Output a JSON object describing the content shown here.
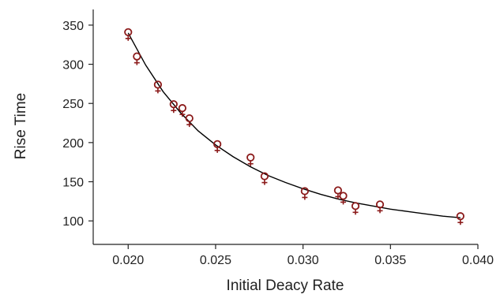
{
  "chart_data": {
    "type": "scatter",
    "title": "",
    "xlabel": "Initial Deacy Rate",
    "ylabel": "Rise Time",
    "xlim": [
      0.018,
      0.04
    ],
    "ylim": [
      70,
      370
    ],
    "x_ticks": [
      0.02,
      0.025,
      0.03,
      0.035,
      0.04
    ],
    "x_tick_labels": [
      "0.020",
      "0.025",
      "0.030",
      "0.035",
      "0.040"
    ],
    "y_ticks": [
      100,
      150,
      200,
      250,
      300,
      350
    ],
    "y_tick_labels": [
      "100",
      "150",
      "200",
      "250",
      "300",
      "350"
    ],
    "grid": false,
    "legend": "none",
    "series": [
      {
        "marker": "female-symbol",
        "color": "#8b1a1a",
        "points": [
          {
            "x": 0.02,
            "y": 341
          },
          {
            "x": 0.0205,
            "y": 310
          },
          {
            "x": 0.0217,
            "y": 274
          },
          {
            "x": 0.0226,
            "y": 249
          },
          {
            "x": 0.0231,
            "y": 244
          },
          {
            "x": 0.0235,
            "y": 231
          },
          {
            "x": 0.0251,
            "y": 198
          },
          {
            "x": 0.027,
            "y": 181
          },
          {
            "x": 0.0278,
            "y": 157
          },
          {
            "x": 0.0301,
            "y": 138
          },
          {
            "x": 0.032,
            "y": 139
          },
          {
            "x": 0.0323,
            "y": 132
          },
          {
            "x": 0.033,
            "y": 119
          },
          {
            "x": 0.0344,
            "y": 121
          },
          {
            "x": 0.039,
            "y": 106
          }
        ]
      }
    ],
    "fit_curve": {
      "type": "line",
      "color": "#000000",
      "x": [
        0.02,
        0.021,
        0.022,
        0.023,
        0.024,
        0.025,
        0.026,
        0.027,
        0.028,
        0.029,
        0.03,
        0.031,
        0.032,
        0.033,
        0.034,
        0.035,
        0.036,
        0.037,
        0.038,
        0.039
      ],
      "y": [
        340,
        299,
        265,
        238,
        215,
        197,
        182,
        169,
        158,
        149,
        141,
        134,
        128,
        123,
        119,
        115,
        112,
        109,
        106,
        104
      ]
    }
  }
}
